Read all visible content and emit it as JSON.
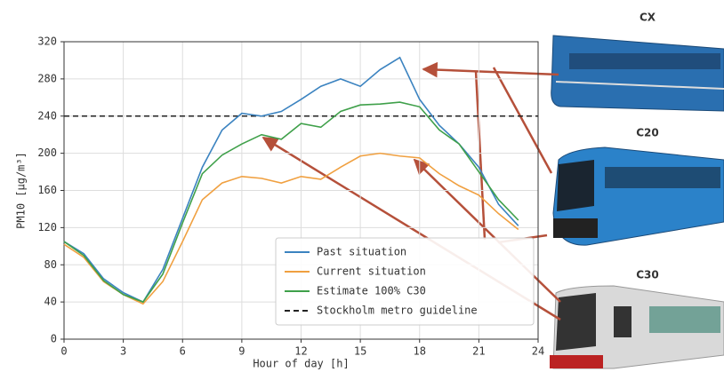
{
  "chart_data": {
    "type": "line",
    "x_label": "Hour of day [h]",
    "y_label": "PM10 [μg/m³]",
    "x": [
      0,
      1,
      2,
      3,
      4,
      5,
      6,
      7,
      8,
      9,
      10,
      11,
      12,
      13,
      14,
      15,
      16,
      17,
      18,
      19,
      20,
      21,
      22,
      23
    ],
    "series": [
      {
        "name": "Past situation",
        "color": "#3b83c0",
        "values": [
          105,
          92,
          65,
          50,
          40,
          75,
          130,
          185,
          225,
          243,
          240,
          245,
          258,
          272,
          280,
          272,
          290,
          303,
          258,
          230,
          210,
          185,
          145,
          122
        ]
      },
      {
        "name": "Current situation",
        "color": "#f0a040",
        "values": [
          102,
          88,
          62,
          48,
          38,
          62,
          105,
          150,
          168,
          175,
          173,
          168,
          175,
          172,
          185,
          197,
          200,
          197,
          195,
          178,
          165,
          155,
          135,
          118
        ]
      },
      {
        "name": "Estimate 100% C30",
        "color": "#3fa04a",
        "values": [
          105,
          90,
          63,
          48,
          40,
          70,
          125,
          178,
          198,
          210,
          220,
          215,
          232,
          228,
          245,
          252,
          253,
          255,
          250,
          225,
          210,
          180,
          150,
          128
        ]
      }
    ],
    "guideline": {
      "name": "Stockholm metro guideline",
      "value": 240,
      "color": "#222",
      "dashed": true
    },
    "xlim": [
      0,
      24
    ],
    "xticks": [
      0,
      3,
      6,
      9,
      12,
      15,
      18,
      21,
      24
    ],
    "ylim": [
      0,
      320
    ],
    "yticks": [
      0,
      40,
      80,
      120,
      160,
      200,
      240,
      280,
      320
    ],
    "grid": true,
    "legend": "lower right",
    "trains": [
      "CX",
      "C20",
      "C30"
    ]
  }
}
